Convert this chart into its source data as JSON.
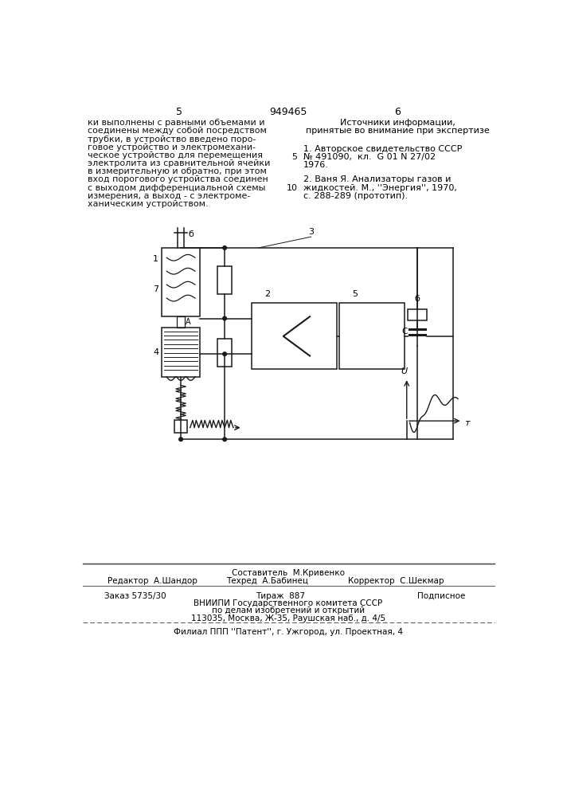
{
  "bg_color": "#ffffff",
  "page_number_left": "5",
  "page_number_center": "949465",
  "page_number_right": "6",
  "left_text_lines": [
    "ки выполнены с равными объемами и",
    "соединены между собой посредством",
    "трубки, в устройство введено поро-",
    "говое устройство и электромехани-",
    "ческое устройство для перемещения",
    "электролита из сравнительной ячейки",
    "в измерительную и обратно, при этом",
    "вход порогового устройства соединен",
    "с выходом дифференциальной схемы",
    "измерения, а выход - с электроме-",
    "ханическим устройством."
  ],
  "right_title": "Источники информации,",
  "right_subtitle": "принятые во внимание при экспертизе",
  "ref1_line1": "1. Авторское свидетельство СССР",
  "ref1_line2": "№ 491090,  кл.  G 01 N 27/02",
  "ref1_line3": "1976.",
  "ref1_num": "5",
  "ref2_line1": "2. Ваня Я. Анализаторы газов и",
  "ref2_line2": "жидкостей. М., ''Энергия'', 1970,",
  "ref2_line3": "с. 288-289 (прототип).",
  "ref2_num": "10",
  "footer_line1": "Составитель  М.Кривенко",
  "footer_editor": "Редактор  А.Шандор",
  "footer_tech": "Техред  А.Бабинец",
  "footer_corrector": "Корректор  С.Шекмар",
  "footer_order": "Заказ 5735/30",
  "footer_tirazh": "Тираж  887",
  "footer_podpisnoe": "Подписное",
  "footer_vnipi": "ВНИИПИ Государственного комитета СССР",
  "footer_inventions": "по делам изобретений и открытий",
  "footer_address": "113035, Москва, Ж-35, Раушская наб., д. 4/5",
  "footer_filial": "Филиал ППП ''Патент'', г. Ужгород, ул. Проектная, 4"
}
